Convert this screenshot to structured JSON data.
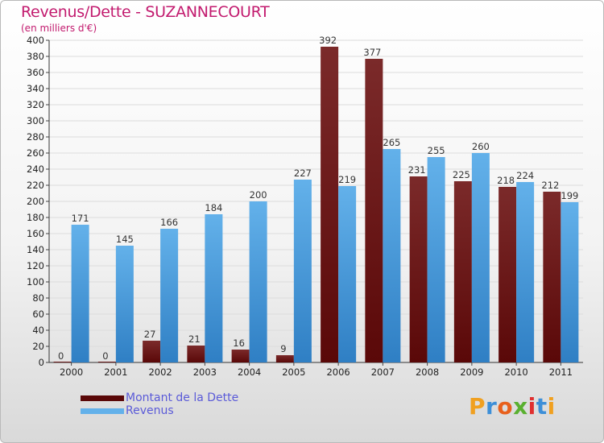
{
  "title": "Revenus/Dette - SUZANNECOURT",
  "subtitle": "(en milliers d'€)",
  "colors": {
    "debt_top": "#7b2a2a",
    "debt_bottom": "#5a0808",
    "rev_top": "#63b1ea",
    "rev_bottom": "#2f7fc4",
    "title": "#c21a6e",
    "legend_text": "#5a5ad8"
  },
  "legend": {
    "debt": "Montant de la Dette",
    "revenue": "Revenus"
  },
  "logo": {
    "text": "Proxiti"
  },
  "chart_data": {
    "type": "bar",
    "title": "Revenus/Dette - SUZANNECOURT",
    "ylabel": "(en milliers d'€)",
    "xlabel": "",
    "categories": [
      "2000",
      "2001",
      "2002",
      "2003",
      "2004",
      "2005",
      "2006",
      "2007",
      "2008",
      "2009",
      "2010",
      "2011"
    ],
    "series": [
      {
        "name": "Montant de la Dette",
        "values": [
          0,
          0,
          27,
          21,
          16,
          9,
          392,
          377,
          231,
          225,
          218,
          212
        ]
      },
      {
        "name": "Revenus",
        "values": [
          171,
          145,
          166,
          184,
          200,
          227,
          219,
          265,
          255,
          260,
          224,
          199
        ]
      }
    ],
    "ylim": [
      0,
      400
    ],
    "yticks": [
      0,
      20,
      40,
      60,
      80,
      100,
      120,
      140,
      160,
      180,
      200,
      220,
      240,
      260,
      280,
      300,
      320,
      340,
      360,
      380,
      400
    ],
    "grid": true,
    "legend_position": "bottom-left"
  }
}
